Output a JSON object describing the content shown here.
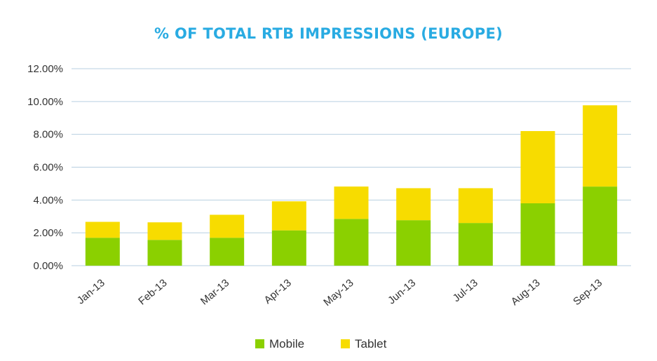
{
  "chart_data": {
    "type": "bar",
    "stacked": true,
    "title": "% OF TOTAL RTB IMPRESSIONS (EUROPE)",
    "categories": [
      "Jan-13",
      "Feb-13",
      "Mar-13",
      "Apr-13",
      "May-13",
      "Jun-13",
      "Jul-13",
      "Aug-13",
      "Sep-13"
    ],
    "series": [
      {
        "name": "Mobile",
        "color": "#8bd000",
        "values": [
          1.7,
          1.57,
          1.7,
          2.15,
          2.85,
          2.77,
          2.6,
          3.8,
          4.82
        ]
      },
      {
        "name": "Tablet",
        "color": "#f7dc00",
        "values": [
          0.97,
          1.07,
          1.4,
          1.77,
          1.97,
          1.95,
          2.12,
          4.4,
          4.95
        ]
      }
    ],
    "ylim": [
      0,
      12
    ],
    "yticks": [
      0,
      2,
      4,
      6,
      8,
      10,
      12
    ],
    "ytick_labels": [
      "0.00%",
      "2.00%",
      "4.00%",
      "6.00%",
      "8.00%",
      "10.00%",
      "12.00%"
    ],
    "xlabel": "",
    "ylabel": "",
    "grid": true,
    "grid_color": "#b7cfe0",
    "title_color": "#29abe2",
    "legend_position": "bottom-center"
  }
}
